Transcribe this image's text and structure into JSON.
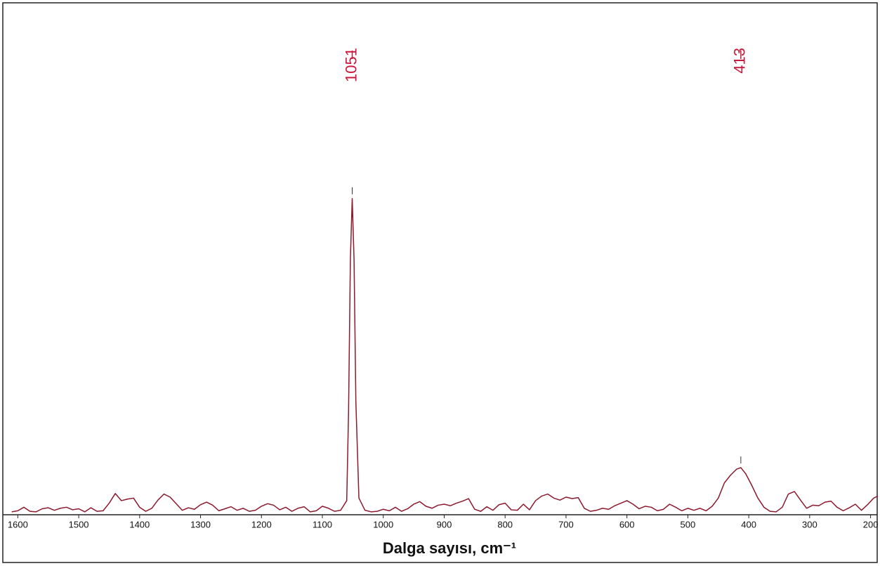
{
  "chart_data": {
    "type": "line",
    "xlabel": "Dalga sayısı, cm⁻¹",
    "color": "#8b1a2e",
    "annotation_color": "#c8193c",
    "annotations": [
      {
        "label": "1051",
        "x": 1051
      },
      {
        "label": "413",
        "x": 413
      }
    ],
    "xlim": [
      1620,
      188
    ],
    "ylim": [
      0,
      100
    ],
    "xticks": [
      1600,
      1500,
      1400,
      1300,
      1200,
      1100,
      1000,
      900,
      800,
      700,
      600,
      500,
      400,
      300,
      200
    ],
    "x": [
      1610,
      1600,
      1590,
      1580,
      1570,
      1560,
      1550,
      1540,
      1530,
      1520,
      1510,
      1500,
      1490,
      1480,
      1470,
      1460,
      1450,
      1440,
      1430,
      1420,
      1410,
      1400,
      1390,
      1380,
      1370,
      1360,
      1350,
      1340,
      1330,
      1320,
      1310,
      1300,
      1290,
      1280,
      1270,
      1260,
      1250,
      1240,
      1230,
      1220,
      1210,
      1200,
      1190,
      1180,
      1170,
      1160,
      1150,
      1140,
      1130,
      1120,
      1110,
      1100,
      1090,
      1080,
      1070,
      1060,
      1057,
      1054,
      1051,
      1048,
      1045,
      1040,
      1030,
      1020,
      1010,
      1000,
      990,
      980,
      970,
      960,
      950,
      940,
      930,
      920,
      910,
      900,
      890,
      880,
      870,
      860,
      850,
      840,
      830,
      820,
      810,
      800,
      790,
      780,
      770,
      760,
      750,
      740,
      730,
      720,
      710,
      700,
      690,
      680,
      670,
      660,
      650,
      640,
      630,
      620,
      610,
      600,
      590,
      580,
      570,
      560,
      550,
      540,
      530,
      520,
      510,
      500,
      490,
      480,
      470,
      460,
      450,
      440,
      430,
      420,
      413,
      405,
      395,
      385,
      375,
      365,
      355,
      345,
      335,
      325,
      315,
      305,
      295,
      285,
      275,
      265,
      255,
      245,
      235,
      225,
      215,
      205,
      195,
      188
    ],
    "values": [
      0.3,
      0.5,
      1.2,
      0.4,
      0.3,
      0.9,
      1.1,
      0.6,
      1.0,
      1.2,
      0.7,
      0.9,
      0.3,
      1.1,
      0.4,
      0.5,
      2.0,
      3.9,
      2.5,
      2.8,
      3.0,
      1.2,
      0.4,
      1.0,
      2.6,
      3.8,
      3.2,
      1.9,
      0.6,
      1.1,
      0.8,
      1.7,
      2.2,
      1.6,
      0.5,
      0.9,
      1.3,
      0.6,
      1.0,
      0.4,
      0.6,
      1.4,
      1.9,
      1.6,
      0.7,
      1.2,
      0.4,
      1.0,
      1.3,
      0.3,
      0.5,
      1.4,
      1.0,
      0.4,
      0.6,
      2.5,
      20,
      50,
      62,
      50,
      22,
      3.0,
      0.6,
      0.3,
      0.4,
      0.8,
      0.5,
      1.2,
      0.4,
      0.9,
      1.8,
      2.3,
      1.4,
      1.0,
      1.6,
      1.8,
      1.5,
      2.0,
      2.4,
      2.9,
      0.8,
      0.4,
      1.3,
      0.6,
      1.7,
      2.0,
      0.7,
      0.6,
      1.8,
      0.7,
      2.5,
      3.4,
      3.8,
      3.0,
      2.6,
      3.2,
      2.9,
      3.1,
      1.0,
      0.4,
      0.6,
      1.0,
      0.8,
      1.5,
      2.0,
      2.5,
      1.8,
      0.9,
      1.4,
      1.2,
      0.5,
      0.8,
      1.8,
      1.2,
      0.5,
      1.0,
      0.6,
      1.0,
      0.5,
      1.4,
      3.0,
      6.0,
      7.5,
      8.7,
      9.0,
      7.8,
      5.5,
      3.0,
      1.2,
      0.4,
      0.3,
      1.2,
      3.8,
      4.3,
      2.6,
      1.0,
      1.6,
      1.5,
      2.2,
      2.4,
      1.2,
      0.5,
      1.1,
      1.8,
      0.6,
      1.7,
      3.0,
      3.4
    ]
  }
}
